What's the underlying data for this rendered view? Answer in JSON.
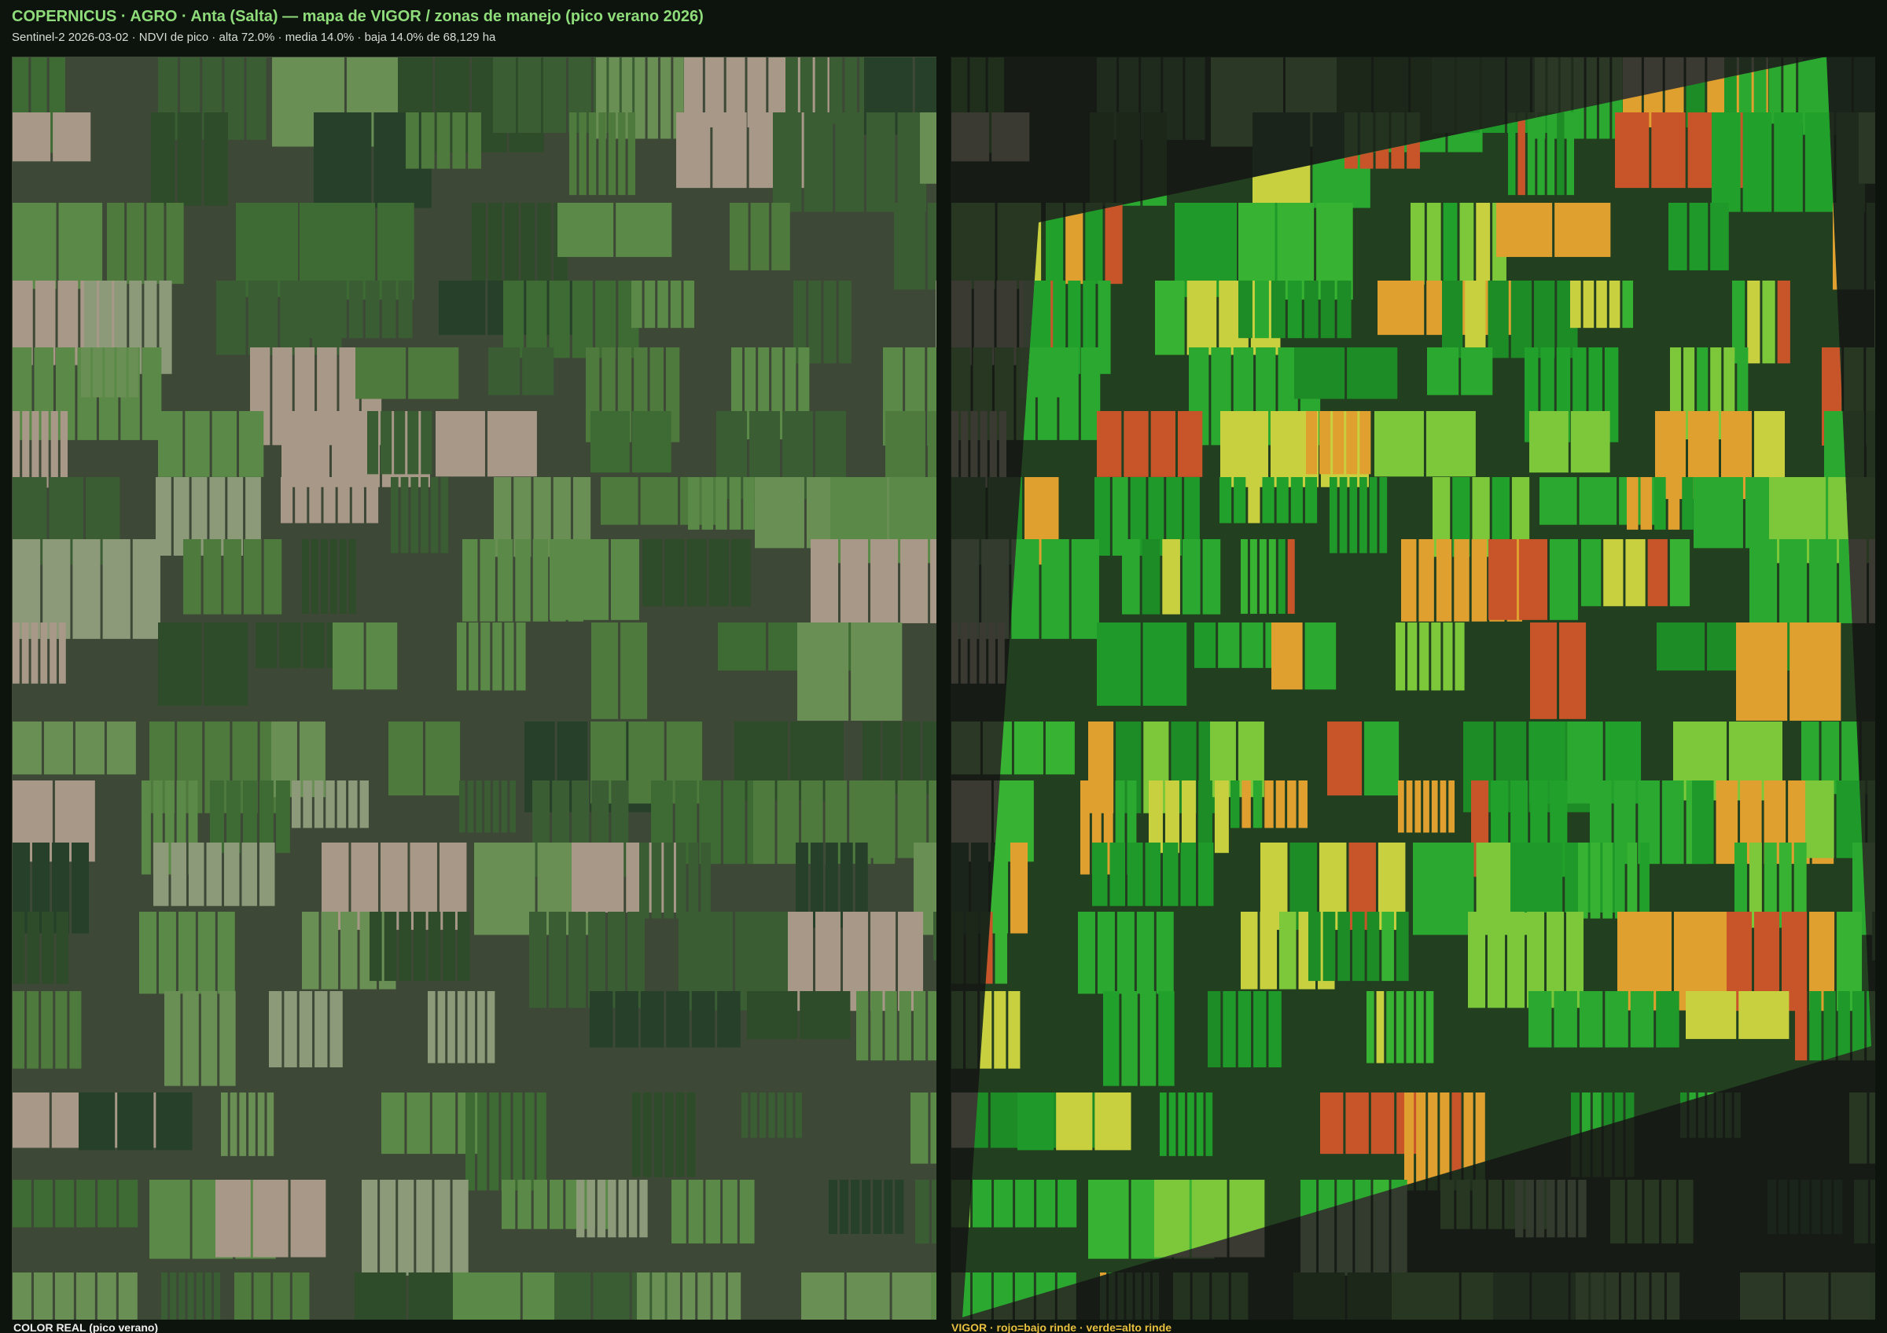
{
  "header": {
    "title": "COPERNICUS · AGRO · Anta (Salta) — mapa de VIGOR / zonas de manejo (pico verano 2026)",
    "subtitle": "Sentinel-2 2026-03-02 · NDVI de pico · alta 72.0% · media 14.0% · baja 14.0% de 68,129 ha"
  },
  "panels": [
    {
      "caption": "COLOR REAL (pico verano)"
    },
    {
      "caption": "VIGOR · rojo=bajo rinde · verde=alto rinde"
    }
  ]
}
